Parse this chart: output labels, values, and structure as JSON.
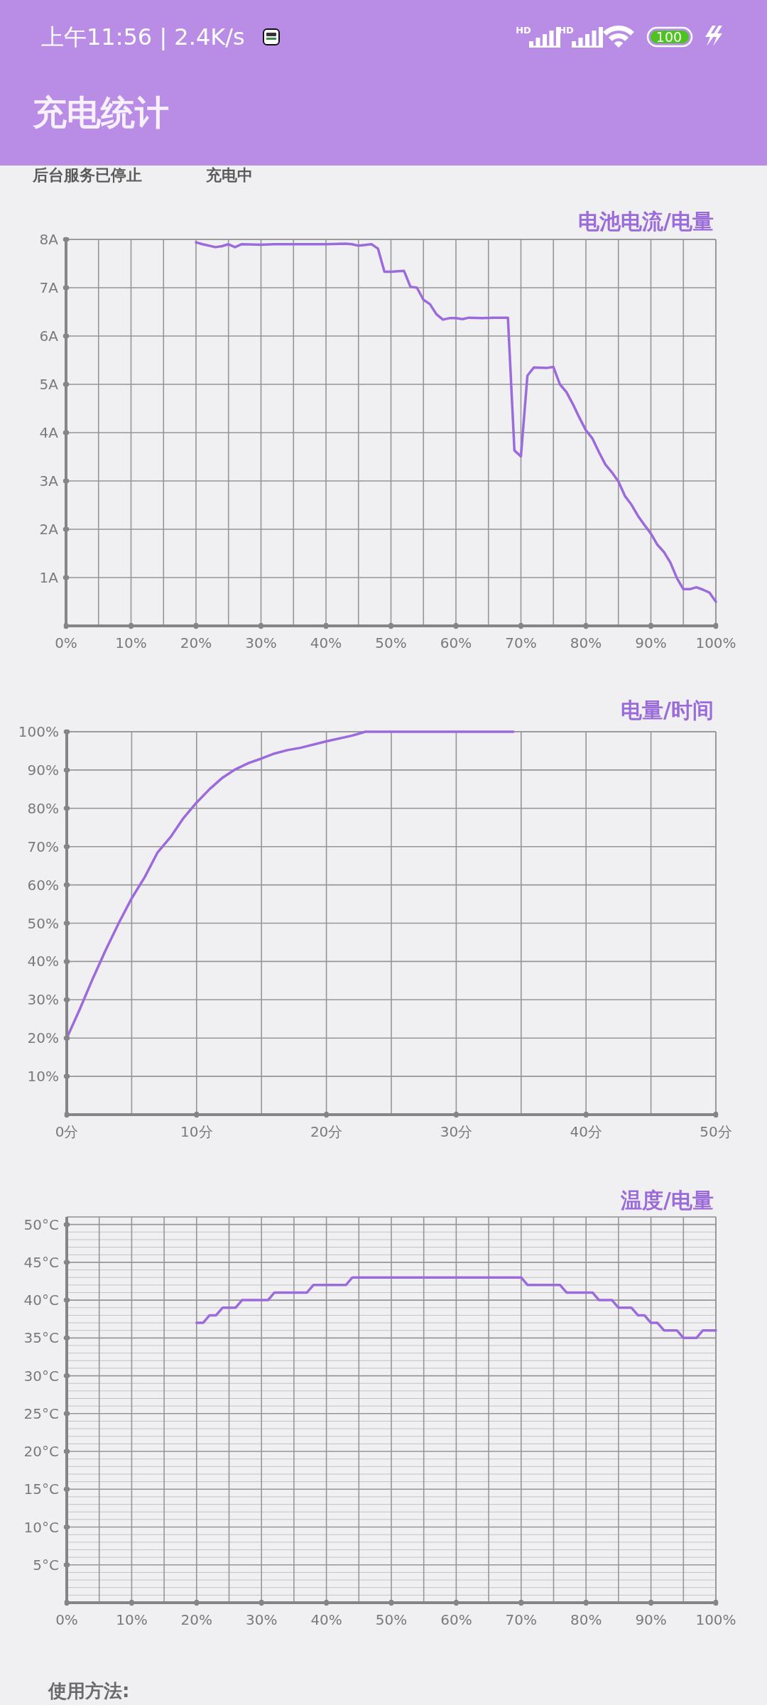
{
  "chart_data": [
    {
      "type": "line",
      "title": "电池电流/电量",
      "x": [
        20,
        21,
        23,
        24,
        25,
        26,
        27,
        30,
        32,
        35,
        40,
        43,
        44,
        45,
        47,
        48,
        49,
        50,
        52,
        53,
        54,
        55,
        56,
        57,
        58,
        59,
        60,
        61,
        62,
        64,
        66,
        68,
        69,
        70,
        71,
        72,
        74,
        75,
        76,
        77,
        78,
        79,
        80,
        81,
        82,
        83,
        84,
        85,
        86,
        87,
        88,
        89,
        90,
        91,
        92,
        93,
        94,
        95,
        96,
        97,
        98,
        99,
        100
      ],
      "series": [
        {
          "color": "#9b6bdc",
          "values": [
            7.94,
            7.9,
            7.84,
            7.86,
            7.9,
            7.84,
            7.9,
            7.89,
            7.9,
            7.9,
            7.9,
            7.91,
            7.9,
            7.87,
            7.9,
            7.81,
            7.33,
            7.33,
            7.35,
            7.02,
            7.0,
            6.75,
            6.66,
            6.45,
            6.34,
            6.37,
            6.37,
            6.35,
            6.38,
            6.37,
            6.38,
            6.38,
            3.63,
            3.51,
            5.18,
            5.35,
            5.34,
            5.36,
            5.0,
            4.84,
            4.59,
            4.31,
            4.05,
            3.88,
            3.6,
            3.34,
            3.18,
            2.99,
            2.69,
            2.51,
            2.28,
            2.09,
            1.91,
            1.68,
            1.53,
            1.31,
            0.99,
            0.76,
            0.76,
            0.8,
            0.75,
            0.69,
            0.5
          ]
        }
      ],
      "xlim": [
        0,
        100
      ],
      "xticks": [
        {
          "value": 0,
          "label": "0%"
        },
        {
          "value": 5,
          "label": null
        },
        {
          "value": 10,
          "label": "10%"
        },
        {
          "value": 15,
          "label": null
        },
        {
          "value": 20,
          "label": "20%"
        },
        {
          "value": 25,
          "label": null
        },
        {
          "value": 30,
          "label": "30%"
        },
        {
          "value": 35,
          "label": null
        },
        {
          "value": 40,
          "label": "40%"
        },
        {
          "value": 45,
          "label": null
        },
        {
          "value": 50,
          "label": "50%"
        },
        {
          "value": 55,
          "label": null
        },
        {
          "value": 60,
          "label": "60%"
        },
        {
          "value": 65,
          "label": null
        },
        {
          "value": 70,
          "label": "70%"
        },
        {
          "value": 75,
          "label": null
        },
        {
          "value": 80,
          "label": "80%"
        },
        {
          "value": 85,
          "label": null
        },
        {
          "value": 90,
          "label": "90%"
        },
        {
          "value": 95,
          "label": null
        },
        {
          "value": 100,
          "label": "100%"
        }
      ],
      "ylim": [
        0,
        8
      ],
      "yticks": [
        {
          "value": 1,
          "label": "1A"
        },
        {
          "value": 2,
          "label": "2A"
        },
        {
          "value": 3,
          "label": "3A"
        },
        {
          "value": 4,
          "label": "4A"
        },
        {
          "value": 5,
          "label": "5A"
        },
        {
          "value": 6,
          "label": "6A"
        },
        {
          "value": 7,
          "label": "7A"
        },
        {
          "value": 8,
          "label": "8A"
        }
      ],
      "grid": true,
      "annotations": [
        "上午11:56 | 2.4K/s",
        "HD",
        "HD",
        "100",
        "充电统计",
        "后台服务已停止",
        "充电中"
      ]
    },
    {
      "type": "line",
      "title": "电量/时间",
      "x": [
        0,
        1,
        2,
        3,
        4,
        5,
        6,
        7,
        8,
        9,
        10,
        11,
        12,
        13,
        14,
        15,
        16,
        17,
        18,
        20,
        22,
        23,
        34.4
      ],
      "series": [
        {
          "color": "#9b6bdc",
          "values": [
            20,
            27.5,
            35.5,
            43,
            50,
            56.5,
            62,
            68.5,
            72.5,
            77.5,
            81.5,
            85,
            88,
            90.2,
            91.8,
            93,
            94.3,
            95.2,
            95.8,
            97.5,
            99,
            100,
            100
          ]
        }
      ],
      "xlim": [
        0,
        50
      ],
      "xticks": [
        {
          "value": 0,
          "label": "0分"
        },
        {
          "value": 5,
          "label": null
        },
        {
          "value": 10,
          "label": "10分"
        },
        {
          "value": 15,
          "label": null
        },
        {
          "value": 20,
          "label": "20分"
        },
        {
          "value": 25,
          "label": null
        },
        {
          "value": 30,
          "label": "30分"
        },
        {
          "value": 35,
          "label": null
        },
        {
          "value": 40,
          "label": "40分"
        },
        {
          "value": 45,
          "label": null
        },
        {
          "value": 50,
          "label": "50分"
        }
      ],
      "ylim": [
        0,
        100
      ],
      "yticks": [
        {
          "value": 10,
          "label": "10%"
        },
        {
          "value": 20,
          "label": "20%"
        },
        {
          "value": 30,
          "label": "30%"
        },
        {
          "value": 40,
          "label": "40%"
        },
        {
          "value": 50,
          "label": "50%"
        },
        {
          "value": 60,
          "label": "60%"
        },
        {
          "value": 70,
          "label": "70%"
        },
        {
          "value": 80,
          "label": "80%"
        },
        {
          "value": 90,
          "label": "90%"
        },
        {
          "value": 100,
          "label": "100%"
        }
      ],
      "grid": true
    },
    {
      "type": "line",
      "title": "温度/电量",
      "x": [
        20,
        21,
        22,
        23,
        24,
        26,
        27,
        31,
        32,
        37,
        38,
        43,
        44,
        70,
        71,
        76,
        77,
        81,
        82,
        84,
        85,
        87,
        88,
        89,
        90,
        91,
        92,
        94,
        95,
        97,
        98,
        100
      ],
      "series": [
        {
          "color": "#9b6bdc",
          "values": [
            37,
            37,
            38,
            38,
            39,
            39,
            40,
            40,
            41,
            41,
            42,
            42,
            43,
            43,
            42,
            42,
            41,
            41,
            40,
            40,
            39,
            39,
            38,
            38,
            37,
            37,
            36,
            36,
            35,
            35,
            36,
            36
          ]
        }
      ],
      "xlim": [
        0,
        100
      ],
      "xticks": [
        {
          "value": 0,
          "label": "0%"
        },
        {
          "value": 5,
          "label": null
        },
        {
          "value": 10,
          "label": "10%"
        },
        {
          "value": 15,
          "label": null
        },
        {
          "value": 20,
          "label": "20%"
        },
        {
          "value": 25,
          "label": null
        },
        {
          "value": 30,
          "label": "30%"
        },
        {
          "value": 35,
          "label": null
        },
        {
          "value": 40,
          "label": "40%"
        },
        {
          "value": 45,
          "label": null
        },
        {
          "value": 50,
          "label": "50%"
        },
        {
          "value": 55,
          "label": null
        },
        {
          "value": 60,
          "label": "60%"
        },
        {
          "value": 65,
          "label": null
        },
        {
          "value": 70,
          "label": "70%"
        },
        {
          "value": 75,
          "label": null
        },
        {
          "value": 80,
          "label": "80%"
        },
        {
          "value": 85,
          "label": null
        },
        {
          "value": 90,
          "label": "90%"
        },
        {
          "value": 95,
          "label": null
        },
        {
          "value": 100,
          "label": "100%"
        }
      ],
      "ylim": [
        0,
        51
      ],
      "yticks": [
        {
          "value": 1,
          "label": null
        },
        {
          "value": 2,
          "label": null
        },
        {
          "value": 3,
          "label": null
        },
        {
          "value": 4,
          "label": null
        },
        {
          "value": 5,
          "label": "5°C"
        },
        {
          "value": 6,
          "label": null
        },
        {
          "value": 7,
          "label": null
        },
        {
          "value": 8,
          "label": null
        },
        {
          "value": 9,
          "label": null
        },
        {
          "value": 10,
          "label": "10°C"
        },
        {
          "value": 11,
          "label": null
        },
        {
          "value": 12,
          "label": null
        },
        {
          "value": 13,
          "label": null
        },
        {
          "value": 14,
          "label": null
        },
        {
          "value": 15,
          "label": "15°C"
        },
        {
          "value": 16,
          "label": null
        },
        {
          "value": 17,
          "label": null
        },
        {
          "value": 18,
          "label": null
        },
        {
          "value": 19,
          "label": null
        },
        {
          "value": 20,
          "label": "20°C"
        },
        {
          "value": 21,
          "label": null
        },
        {
          "value": 22,
          "label": null
        },
        {
          "value": 23,
          "label": null
        },
        {
          "value": 24,
          "label": null
        },
        {
          "value": 25,
          "label": "25°C"
        },
        {
          "value": 26,
          "label": null
        },
        {
          "value": 27,
          "label": null
        },
        {
          "value": 28,
          "label": null
        },
        {
          "value": 29,
          "label": null
        },
        {
          "value": 30,
          "label": "30°C"
        },
        {
          "value": 31,
          "label": null
        },
        {
          "value": 32,
          "label": null
        },
        {
          "value": 33,
          "label": null
        },
        {
          "value": 34,
          "label": null
        },
        {
          "value": 35,
          "label": "35°C"
        },
        {
          "value": 36,
          "label": null
        },
        {
          "value": 37,
          "label": null
        },
        {
          "value": 38,
          "label": null
        },
        {
          "value": 39,
          "label": null
        },
        {
          "value": 40,
          "label": "40°C"
        },
        {
          "value": 41,
          "label": null
        },
        {
          "value": 42,
          "label": null
        },
        {
          "value": 43,
          "label": null
        },
        {
          "value": 44,
          "label": null
        },
        {
          "value": 45,
          "label": "45°C"
        },
        {
          "value": 46,
          "label": null
        },
        {
          "value": 47,
          "label": null
        },
        {
          "value": 48,
          "label": null
        },
        {
          "value": 49,
          "label": null
        },
        {
          "value": 50,
          "label": "50°C"
        },
        {
          "value": 51,
          "label": null
        }
      ],
      "grid": true,
      "annotations": [
        "使用方法:"
      ]
    }
  ]
}
